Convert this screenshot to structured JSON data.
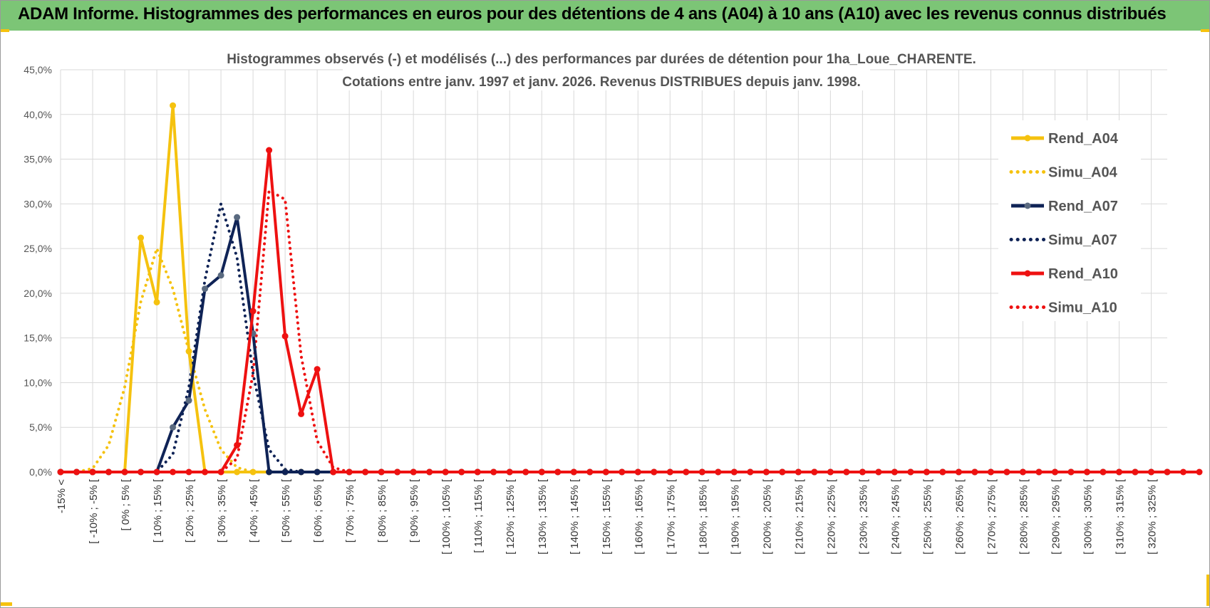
{
  "banner": {
    "title": "ADAM Informe. Histogrammes des performances en euros pour des détentions de 4 ans (A04) à 10 ans (A10) avec les revenus connus distribués"
  },
  "chart_data": {
    "type": "line",
    "title": "Histogrammes observés (-) et modélisés (...) des performances par durées de détention pour 1ha_Loue_CHARENTE.",
    "subtitle": "Cotations entre janv. 1997 et janv. 2026. Revenus DISTRIBUES depuis janv. 1998.",
    "xlabel": "",
    "ylabel": "",
    "ylim": [
      0,
      45
    ],
    "y_ticks": [
      "0,0%",
      "5,0%",
      "10,0%",
      "15,0%",
      "20,0%",
      "25,0%",
      "30,0%",
      "35,0%",
      "40,0%",
      "45,0%"
    ],
    "grid": true,
    "legend_position": "right",
    "x_labels_shown": [
      "-15% <",
      "[ -10% ; -5% [",
      "[ 0% ; 5% [",
      "[ 10% ; 15% [",
      "[ 20% ; 25% [",
      "[ 30% ; 35% [",
      "[ 40% ; 45% [",
      "[ 50% ; 55% [",
      "[ 60% ; 65% [",
      "[ 70% ; 75% [",
      "[ 80% ; 85% [",
      "[ 90% ; 95% [",
      "[ 100% ; 105% [",
      "[ 110% ; 115% [",
      "[ 120% ; 125% [",
      "[ 130% ; 135% [",
      "[ 140% ; 145% [",
      "[ 150% ; 155% [",
      "[ 160% ; 165% [",
      "[ 170% ; 175% [",
      "[ 180% ; 185% [",
      "[ 190% ; 195% [",
      "[ 200% ; 205% [",
      "[ 210% ; 215% [",
      "[ 220% ; 225% [",
      "[ 230% ; 235% [",
      "[ 240% ; 245% [",
      "[ 250% ; 255% [",
      "[ 260% ; 265% [",
      "[ 270% ; 275% [",
      "[ 280% ; 285% [",
      "[ 290% ; 295% [",
      "[ 300% ; 305% [",
      "[ 310% ; 315% [",
      "[ 320% ; 325% ["
    ],
    "series": [
      {
        "name": "Rend_A04",
        "style": "solid",
        "color": "#f5c20f",
        "values": [
          0,
          0,
          0,
          0,
          0,
          26.2,
          19,
          41,
          13.5,
          0,
          0,
          0,
          0,
          0,
          0,
          0,
          0,
          0,
          0,
          0,
          0,
          0,
          0,
          0,
          0,
          0,
          0,
          0,
          0,
          0,
          0,
          0,
          0,
          0,
          0,
          0,
          0,
          0,
          0,
          0,
          0,
          0,
          0,
          0,
          0,
          0,
          0,
          0,
          0,
          0,
          0,
          0,
          0,
          0,
          0,
          0,
          0,
          0,
          0,
          0,
          0,
          0,
          0,
          0,
          0,
          0,
          0,
          0,
          0,
          0
        ]
      },
      {
        "name": "Simu_A04",
        "style": "dotted",
        "color": "#f5c20f",
        "values": [
          0,
          0,
          0.4,
          3,
          9.5,
          19,
          25,
          20.5,
          13.5,
          7,
          2.5,
          0.5,
          0,
          0,
          0,
          0,
          0,
          0,
          0,
          0,
          0,
          0,
          0,
          0,
          0,
          0,
          0,
          0,
          0,
          0,
          0,
          0,
          0,
          0,
          0,
          0,
          0,
          0,
          0,
          0,
          0,
          0,
          0,
          0,
          0,
          0,
          0,
          0,
          0,
          0,
          0,
          0,
          0,
          0,
          0,
          0,
          0,
          0,
          0,
          0,
          0,
          0,
          0,
          0,
          0,
          0,
          0,
          0,
          0,
          0
        ]
      },
      {
        "name": "Rend_A07",
        "style": "solid",
        "color": "#0f2356",
        "values": [
          0,
          0,
          0,
          0,
          0,
          0,
          0,
          5,
          8,
          20.5,
          22,
          28.5,
          15.5,
          0,
          0,
          0,
          0,
          0,
          0,
          0,
          0,
          0,
          0,
          0,
          0,
          0,
          0,
          0,
          0,
          0,
          0,
          0,
          0,
          0,
          0,
          0,
          0,
          0,
          0,
          0,
          0,
          0,
          0,
          0,
          0,
          0,
          0,
          0,
          0,
          0,
          0,
          0,
          0,
          0,
          0,
          0,
          0,
          0,
          0,
          0,
          0,
          0,
          0,
          0,
          0,
          0,
          0,
          0,
          0,
          0
        ]
      },
      {
        "name": "Simu_A07",
        "style": "dotted",
        "color": "#0f2356",
        "values": [
          0,
          0,
          0,
          0,
          0,
          0,
          0,
          2,
          9.5,
          21.5,
          30,
          24,
          11,
          2.5,
          0.3,
          0,
          0,
          0,
          0,
          0,
          0,
          0,
          0,
          0,
          0,
          0,
          0,
          0,
          0,
          0,
          0,
          0,
          0,
          0,
          0,
          0,
          0,
          0,
          0,
          0,
          0,
          0,
          0,
          0,
          0,
          0,
          0,
          0,
          0,
          0,
          0,
          0,
          0,
          0,
          0,
          0,
          0,
          0,
          0,
          0,
          0,
          0,
          0,
          0,
          0,
          0,
          0,
          0,
          0,
          0
        ]
      },
      {
        "name": "Rend_A10",
        "style": "solid",
        "color": "#ee1111",
        "values": [
          0,
          0,
          0,
          0,
          0,
          0,
          0,
          0,
          0,
          0,
          0,
          3,
          18,
          36,
          15.2,
          6.5,
          11.5,
          0,
          0,
          0,
          0,
          0,
          0,
          0,
          0,
          0,
          0,
          0,
          0,
          0,
          0,
          0,
          0,
          0,
          0,
          0,
          0,
          0,
          0,
          0,
          0,
          0,
          0,
          0,
          0,
          0,
          0,
          0,
          0,
          0,
          0,
          0,
          0,
          0,
          0,
          0,
          0,
          0,
          0,
          0,
          0,
          0,
          0,
          0,
          0,
          0,
          0,
          0,
          0,
          0,
          0,
          0
        ]
      },
      {
        "name": "Simu_A10",
        "style": "dotted",
        "color": "#ee1111",
        "values": [
          0,
          0,
          0,
          0,
          0,
          0,
          0,
          0,
          0,
          0,
          0,
          1.5,
          11,
          31.5,
          30.5,
          13,
          3.5,
          0.5,
          0,
          0,
          0,
          0,
          0,
          0,
          0,
          0,
          0,
          0,
          0,
          0,
          0,
          0,
          0,
          0,
          0,
          0,
          0,
          0,
          0,
          0,
          0,
          0,
          0,
          0,
          0,
          0,
          0,
          0,
          0,
          0,
          0,
          0,
          0,
          0,
          0,
          0,
          0,
          0,
          0,
          0,
          0,
          0,
          0,
          0,
          0,
          0,
          0,
          0,
          0,
          0
        ]
      }
    ]
  }
}
